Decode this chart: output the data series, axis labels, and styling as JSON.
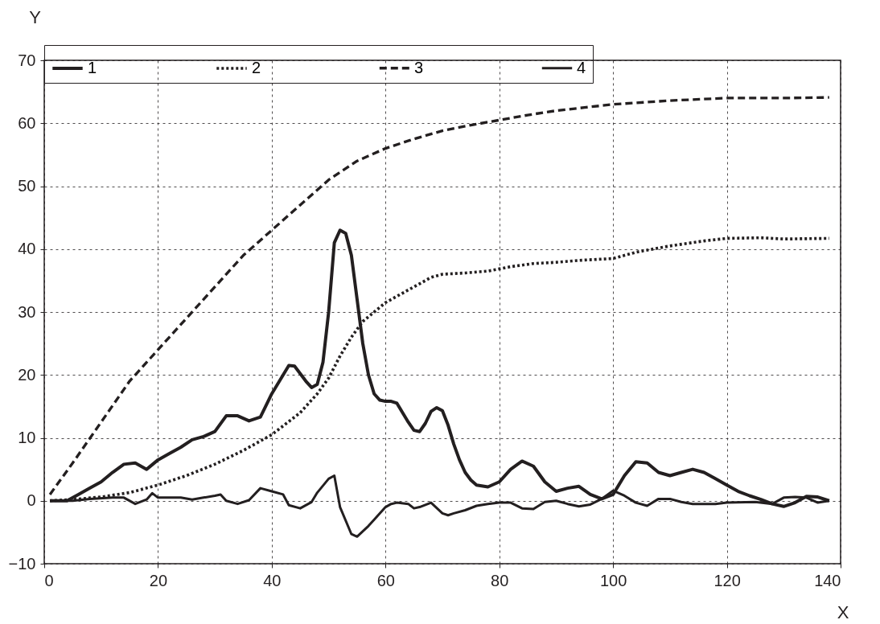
{
  "chart_data": {
    "type": "line",
    "xlabel": "X",
    "ylabel": "Y",
    "xlim": [
      0,
      140
    ],
    "ylim": [
      -10,
      70
    ],
    "xticks": [
      0,
      20,
      40,
      60,
      80,
      100,
      120,
      140
    ],
    "yticks": [
      -10,
      0,
      10,
      20,
      30,
      40,
      50,
      60,
      70
    ],
    "grid": true,
    "legend": "top",
    "marker": "none",
    "series": [
      {
        "name": "1",
        "color": "#231f20",
        "line_style": "solid",
        "x": [
          1,
          4,
          6,
          8,
          10,
          12,
          14,
          16,
          18,
          20,
          22,
          24,
          26,
          28,
          30,
          32,
          34,
          36,
          38,
          40,
          42,
          43,
          44,
          46,
          47,
          48,
          49,
          50,
          51,
          52,
          53,
          54,
          55,
          56,
          57,
          58,
          59,
          60,
          61,
          62,
          63,
          64,
          65,
          66,
          67,
          68,
          69,
          70,
          71,
          72,
          73,
          74,
          75,
          76,
          78,
          80,
          82,
          84,
          86,
          88,
          90,
          92,
          94,
          96,
          98,
          100,
          102,
          104,
          106,
          108,
          110,
          112,
          114,
          116,
          118,
          120,
          122,
          124,
          126,
          128,
          130,
          132,
          134,
          136,
          138
        ],
        "values": [
          0,
          0,
          1,
          2,
          3,
          4.5,
          5.8,
          6,
          5,
          6.5,
          7.5,
          8.5,
          9.7,
          10.2,
          11,
          13.5,
          13.5,
          12.7,
          13.3,
          17,
          20,
          21.5,
          21.4,
          19,
          18,
          18.5,
          22,
          30,
          41,
          43,
          42.5,
          39,
          32,
          25,
          20,
          17,
          16,
          15.8,
          15.8,
          15.5,
          14,
          12.5,
          11.2,
          11,
          12.3,
          14.2,
          14.8,
          14.3,
          12,
          9,
          6.5,
          4.5,
          3.3,
          2.5,
          2.2,
          3,
          5,
          6.3,
          5.5,
          3,
          1.5,
          2,
          2.3,
          1,
          0.3,
          1,
          4,
          6.2,
          6,
          4.5,
          4,
          4.5,
          5,
          4.5,
          3.5,
          2.5,
          1.5,
          0.8,
          0.2,
          -0.5,
          -0.9,
          -0.3,
          0.7,
          0.6,
          0
        ]
      },
      {
        "name": "2",
        "color": "#231f20",
        "line_style": "dotted",
        "x": [
          1,
          5,
          10,
          15,
          20,
          25,
          30,
          35,
          40,
          45,
          48,
          50,
          52,
          54,
          56,
          58,
          60,
          62,
          64,
          66,
          68,
          70,
          74,
          78,
          82,
          86,
          90,
          94,
          100,
          104,
          110,
          116,
          120,
          126,
          130,
          138
        ],
        "values": [
          0,
          0.2,
          0.6,
          1.3,
          2.5,
          4,
          5.8,
          8,
          10.5,
          14,
          17,
          19.5,
          23,
          26,
          28.5,
          30,
          31.5,
          32.5,
          33.5,
          34.5,
          35.5,
          36,
          36.2,
          36.5,
          37.2,
          37.7,
          37.9,
          38.2,
          38.5,
          39.5,
          40.5,
          41.3,
          41.7,
          41.8,
          41.6,
          41.7
        ]
      },
      {
        "name": "3",
        "color": "#231f20",
        "line_style": "dashed",
        "x": [
          1,
          5,
          10,
          15,
          20,
          25,
          30,
          35,
          40,
          45,
          50,
          55,
          60,
          65,
          70,
          75,
          80,
          85,
          90,
          95,
          100,
          110,
          120,
          130,
          138
        ],
        "values": [
          1,
          6,
          12.5,
          19,
          24,
          29,
          34,
          39,
          43,
          47,
          51,
          54,
          56,
          57.5,
          58.8,
          59.7,
          60.5,
          61.3,
          62,
          62.5,
          63,
          63.6,
          64,
          64,
          64.1
        ]
      },
      {
        "name": "4",
        "color": "#231f20",
        "line_style": "solid",
        "x": [
          1,
          5,
          8,
          12,
          14,
          16,
          18,
          19,
          20,
          24,
          26,
          28,
          30,
          31,
          32,
          34,
          36,
          38,
          40,
          42,
          43,
          45,
          47,
          48,
          50,
          51,
          52,
          54,
          55,
          57,
          58,
          60,
          61,
          62,
          64,
          65,
          66,
          68,
          70,
          71,
          72,
          74,
          76,
          78,
          80,
          82,
          84,
          86,
          88,
          90,
          92,
          94,
          96,
          98,
          100,
          102,
          104,
          106,
          108,
          110,
          112,
          114,
          116,
          118,
          120,
          125,
          128,
          130,
          132,
          134,
          136,
          138
        ],
        "values": [
          0,
          0,
          0.3,
          0.5,
          0.5,
          -0.5,
          0.2,
          1.2,
          0.5,
          0.5,
          0.2,
          0.5,
          0.8,
          1,
          0,
          -0.5,
          0.1,
          2,
          1.5,
          1,
          -0.7,
          -1.2,
          -0.2,
          1.3,
          3.5,
          4,
          -1,
          -5.3,
          -5.7,
          -4,
          -3,
          -1,
          -0.5,
          -0.3,
          -0.5,
          -1.2,
          -1,
          -0.3,
          -2,
          -2.3,
          -2,
          -1.5,
          -0.8,
          -0.5,
          -0.3,
          -0.3,
          -1.2,
          -1.3,
          -0.2,
          0,
          -0.5,
          -0.9,
          -0.6,
          0.3,
          1.6,
          0.8,
          -0.3,
          -0.8,
          0.3,
          0.3,
          -0.2,
          -0.5,
          -0.5,
          -0.5,
          -0.3,
          -0.2,
          -0.5,
          0.5,
          0.6,
          0.5,
          -0.3,
          0
        ]
      }
    ]
  }
}
